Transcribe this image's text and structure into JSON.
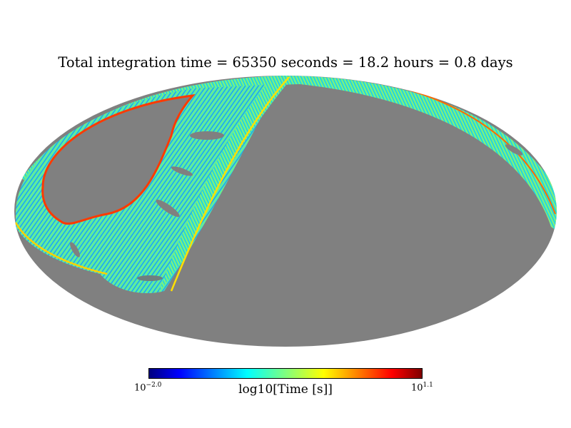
{
  "title": "Total integration time = 65350 seconds = 18.2 hours = 0.8 days",
  "map": {
    "projection": "Mollweide",
    "background_color": "#808080",
    "colormap": "jet",
    "colormap_stops": [
      "#00007f",
      "#0000ff",
      "#00ffff",
      "#7fff7f",
      "#ffff00",
      "#ff0000",
      "#7f0000"
    ]
  },
  "colorbar": {
    "label": "log10[Time [s]]",
    "min_base": "10",
    "min_exp": "−2.0",
    "max_base": "10",
    "max_exp": "1.1"
  }
}
